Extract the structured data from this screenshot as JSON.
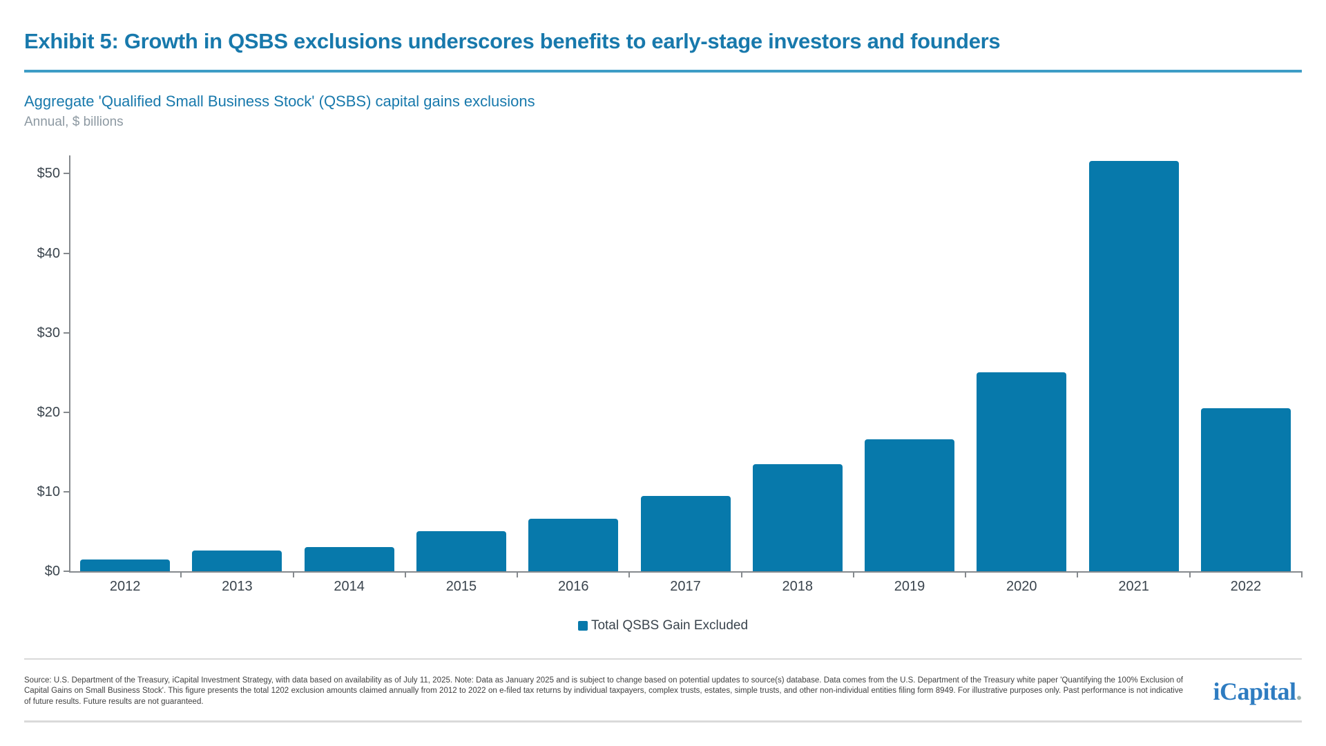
{
  "page": {
    "title": "Exhibit 5: Growth in QSBS exclusions underscores benefits to early-stage investors and founders",
    "subtitle": "Aggregate 'Qualified Small Business Stock' (QSBS) capital gains exclusions",
    "unit_note": "Annual, $ billions"
  },
  "chart_data": {
    "type": "bar",
    "title": "Aggregate 'Qualified Small Business Stock' (QSBS) capital gains exclusions",
    "unit": "Annual, $ billions",
    "categories": [
      "2012",
      "2013",
      "2014",
      "2015",
      "2016",
      "2017",
      "2018",
      "2019",
      "2020",
      "2021",
      "2022"
    ],
    "series": [
      {
        "name": "Total QSBS Gain Excluded",
        "values": [
          1.5,
          2.6,
          3.0,
          5.0,
          6.6,
          9.5,
          13.5,
          16.6,
          25.0,
          51.6,
          20.5
        ]
      }
    ],
    "xlabel": "",
    "ylabel": "$ billions",
    "ylim": [
      0,
      52.3
    ],
    "yticks": [
      0,
      10,
      20,
      30,
      40,
      50
    ],
    "ytick_labels": [
      "$0",
      "$10",
      "$20",
      "$30",
      "$40",
      "$50"
    ],
    "grid": false,
    "legend_position": "bottom",
    "bar_color": "#0779AB"
  },
  "legend": {
    "items": [
      {
        "label": "Total QSBS Gain Excluded",
        "color": "#0779AB"
      }
    ]
  },
  "footer": {
    "disclosure": "Source: U.S. Department of the Treasury, iCapital Investment Strategy, with data based on availability as of July 11, 2025. Note: Data as January 2025 and is subject to change based on potential updates to source(s) database. Data comes from the U.S. Department of the Treasury white paper 'Quantifying the 100% Exclusion of Capital Gains on Small Business Stock'. This figure presents the total 1202 exclusion amounts claimed annually from 2012 to 2022 on e-filed tax returns by individual taxpayers, complex trusts, estates, simple trusts, and other non-individual entities filing form 8949. For illustrative purposes only. Past performance is not indicative of future results. Future results are not guaranteed.",
    "logo_text": "iCapital",
    "logo_suffix": "."
  },
  "colors": {
    "accent_heading": "#1879AC",
    "accent_rule": "#3E9DC6",
    "bar": "#0779AB",
    "axis_text": "#3A444D",
    "muted_text": "#8D99A2",
    "axis_line": "#85898D",
    "footer_text": "#3F3F3F",
    "divider": "#D9D9D9",
    "logo_blue": "#2E7CC1",
    "logo_dot": "#9DB1AD"
  }
}
